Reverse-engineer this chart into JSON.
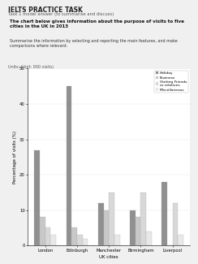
{
  "title": "IELTS PRACTICE TASK",
  "task_label": "Task 1 model answer (to summarise and discuss)",
  "subtitle_bold": "The chart below gives information about the purpose of visits to five cities in the UK in 2013",
  "instruction": "Summarise the information by selecting and reporting the main features, and make comparisons where relevant.",
  "units_label": "Units: (Unit: 000 visits)",
  "y_label": "Percentage of visits (%)",
  "x_label": "UK cities",
  "categories": [
    "London",
    "Edinburgh",
    "Manchester",
    "Birmingham",
    "Liverpool"
  ],
  "series_names": [
    "Holiday",
    "Business",
    "Visiting Friends\nor relatives",
    "Miscellaneous"
  ],
  "colors": [
    "#909090",
    "#c8c8c8",
    "#d8d8d8",
    "#e8e8e8"
  ],
  "visit_data": {
    "Holiday": [
      27,
      45,
      12,
      10,
      18
    ],
    "Business": [
      8,
      5,
      10,
      8,
      0
    ],
    "Visiting Friends\nor relatives": [
      5,
      3,
      15,
      15,
      12
    ],
    "Miscellaneous": [
      3,
      2,
      3,
      4,
      3
    ]
  },
  "ylim": [
    0,
    50
  ],
  "yticks": [
    0,
    10,
    20,
    30,
    40,
    50
  ],
  "bar_width": 0.17,
  "background_color": "#f0f0f0",
  "plot_bg": "#ffffff",
  "figsize": [
    2.44,
    3.25
  ],
  "dpi": 100
}
